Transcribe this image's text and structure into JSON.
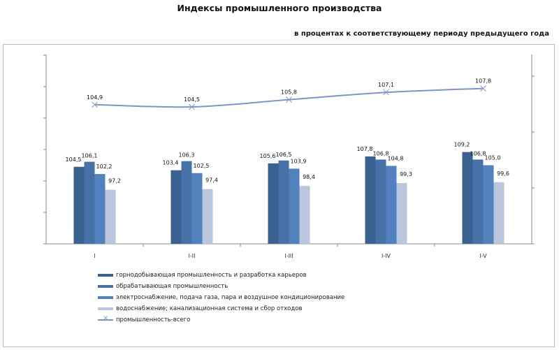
{
  "chart_data": {
    "type": "bar+line",
    "title": "Индексы промышленного  производства",
    "subtitle": "в процентах к соответствующему периоду предыдущего года",
    "categories": [
      "I",
      "I-II",
      "I-III",
      "I-IV",
      "I-V"
    ],
    "series": [
      {
        "name": "горнодобывающая промышленность и разработка карьеров",
        "type": "bar",
        "axis": "left",
        "color": "#3b6190",
        "values": [
          104.5,
          103.4,
          105.6,
          107.8,
          109.2
        ]
      },
      {
        "name": "обрабатывающая промышленность",
        "type": "bar",
        "axis": "left",
        "color": "#4672a8",
        "values": [
          106.1,
          106.3,
          106.5,
          106.8,
          106.8
        ]
      },
      {
        "name": "электроснабжение, подача газа, пара и воздушное кондиционирование",
        "type": "bar",
        "axis": "left",
        "color": "#5282be",
        "values": [
          102.2,
          102.5,
          103.9,
          104.8,
          105.0
        ]
      },
      {
        "name": "водоснабжение; канализационная система и сбор отходов",
        "type": "bar",
        "axis": "left",
        "color": "#bac6de",
        "values": [
          97.2,
          97.4,
          98.4,
          99.3,
          99.6
        ]
      },
      {
        "name": "промышленность-всего",
        "type": "line",
        "axis": "right",
        "color": "#7f95c6",
        "values": [
          104.9,
          104.5,
          105.8,
          107.1,
          107.8
        ]
      }
    ],
    "left_axis": {
      "ylim": [
        80,
        140
      ],
      "tick_step": 10,
      "tick_labels_shown": false
    },
    "right_axis": {
      "ylim": [
        80,
        114
      ],
      "tick_step": 10,
      "tick_labels_shown": false
    },
    "grid": false,
    "legend_position": "bottom-left"
  }
}
